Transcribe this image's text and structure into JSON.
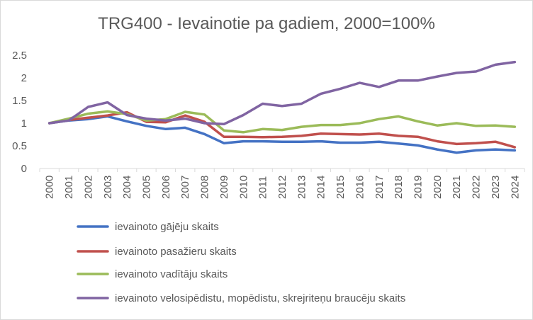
{
  "chart_data": {
    "type": "line",
    "title": "TRG400 - Ievainotie pa gadiem, 2000=100%",
    "x": [
      "2000",
      "2001",
      "2002",
      "2003",
      "2004",
      "2005",
      "2006",
      "2007",
      "2008",
      "2009",
      "2010",
      "2011",
      "2012",
      "2013",
      "2014",
      "2015",
      "2016",
      "2017",
      "2018",
      "2019",
      "2020",
      "2021",
      "2022",
      "2023",
      "2024"
    ],
    "y_ticks": [
      "0",
      "0.5",
      "1",
      "1.5",
      "2",
      "2.5"
    ],
    "ylim": [
      0,
      2.5
    ],
    "grid": false,
    "legend_position": "bottom",
    "series": [
      {
        "name": "ievainoto gājēju skaits",
        "color": "#4472C4",
        "values": [
          1.0,
          1.06,
          1.09,
          1.15,
          1.04,
          0.94,
          0.87,
          0.9,
          0.76,
          0.56,
          0.6,
          0.6,
          0.59,
          0.59,
          0.6,
          0.57,
          0.57,
          0.59,
          0.55,
          0.51,
          0.42,
          0.35,
          0.4,
          0.42,
          0.4
        ]
      },
      {
        "name": "ievainoto pasažieru skaits",
        "color": "#C0504D",
        "values": [
          1.0,
          1.07,
          1.12,
          1.17,
          1.24,
          1.03,
          1.02,
          1.17,
          1.03,
          0.7,
          0.7,
          0.69,
          0.7,
          0.72,
          0.77,
          0.76,
          0.75,
          0.77,
          0.72,
          0.7,
          0.6,
          0.54,
          0.56,
          0.59,
          0.47
        ]
      },
      {
        "name": "ievainoto vadītāju skaits",
        "color": "#9BBB59",
        "values": [
          1.0,
          1.1,
          1.21,
          1.26,
          1.2,
          1.06,
          1.09,
          1.25,
          1.19,
          0.84,
          0.8,
          0.87,
          0.85,
          0.92,
          0.96,
          0.96,
          1.0,
          1.09,
          1.15,
          1.04,
          0.95,
          1.0,
          0.94,
          0.95,
          0.92
        ]
      },
      {
        "name": "ievainoto velosipēdistu, mopēdistu, skrejriteņu braucēju skaits",
        "color": "#8064A2",
        "values": [
          1.0,
          1.06,
          1.36,
          1.46,
          1.18,
          1.1,
          1.06,
          1.1,
          1.0,
          0.98,
          1.18,
          1.43,
          1.38,
          1.43,
          1.65,
          1.76,
          1.89,
          1.8,
          1.94,
          1.94,
          2.03,
          2.11,
          2.14,
          2.29,
          2.35
        ]
      }
    ]
  }
}
